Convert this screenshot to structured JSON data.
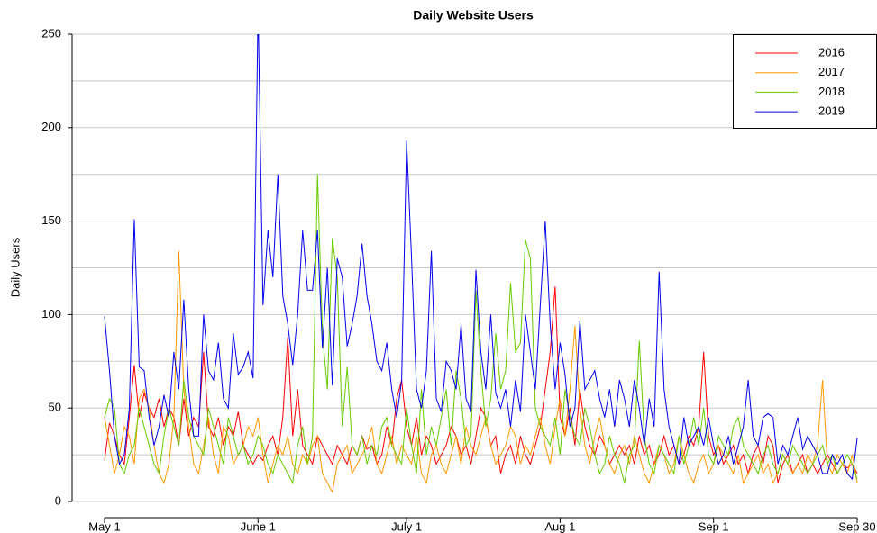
{
  "chart_data": {
    "type": "line",
    "title": "Daily Website Users",
    "ylabel": "Daily Users",
    "xlim": [
      0,
      152
    ],
    "xticks": [
      {
        "value": 0,
        "label": "May 1"
      },
      {
        "value": 31,
        "label": "June 1"
      },
      {
        "value": 61,
        "label": "July 1"
      },
      {
        "value": 92,
        "label": "Aug 1"
      },
      {
        "value": 123,
        "label": "Sep 1"
      },
      {
        "value": 152,
        "label": "Sep 30"
      }
    ],
    "ylim": [
      0,
      250
    ],
    "yticks": [
      0,
      50,
      100,
      150,
      200,
      250
    ],
    "ygrid": [
      0,
      25,
      50,
      75,
      100,
      125,
      150,
      175,
      200,
      225,
      250
    ],
    "grid": true,
    "legend": "top-right",
    "series": [
      {
        "name": "2016",
        "color": "#ff0000",
        "values": [
          22,
          42,
          35,
          25,
          20,
          45,
          73,
          45,
          58,
          50,
          45,
          55,
          40,
          50,
          45,
          30,
          55,
          35,
          45,
          40,
          80,
          40,
          35,
          45,
          30,
          40,
          35,
          48,
          30,
          25,
          20,
          25,
          22,
          30,
          35,
          25,
          45,
          88,
          35,
          60,
          30,
          25,
          20,
          35,
          30,
          25,
          20,
          30,
          25,
          20,
          30,
          25,
          35,
          28,
          30,
          20,
          25,
          40,
          30,
          55,
          65,
          40,
          30,
          45,
          25,
          35,
          30,
          20,
          25,
          30,
          40,
          35,
          25,
          30,
          20,
          35,
          50,
          45,
          30,
          35,
          15,
          25,
          30,
          20,
          35,
          25,
          20,
          30,
          40,
          60,
          80,
          115,
          45,
          35,
          50,
          30,
          60,
          40,
          30,
          25,
          35,
          30,
          20,
          25,
          30,
          25,
          30,
          20,
          35,
          25,
          30,
          20,
          25,
          35,
          25,
          30,
          20,
          25,
          35,
          30,
          40,
          80,
          35,
          25,
          30,
          20,
          25,
          30,
          20,
          25,
          15,
          25,
          30,
          20,
          35,
          30,
          10,
          20,
          25,
          15,
          20,
          25,
          15,
          20,
          15,
          20,
          25,
          20,
          15,
          20,
          18,
          20,
          15
        ]
      },
      {
        "name": "2017",
        "color": "#ff9900",
        "values": [
          45,
          30,
          15,
          25,
          40,
          35,
          20,
          55,
          60,
          50,
          30,
          15,
          10,
          20,
          45,
          134,
          60,
          40,
          20,
          15,
          30,
          45,
          25,
          15,
          40,
          35,
          20,
          25,
          30,
          40,
          35,
          45,
          25,
          10,
          20,
          30,
          25,
          35,
          20,
          15,
          25,
          20,
          30,
          35,
          15,
          10,
          5,
          20,
          25,
          30,
          15,
          20,
          25,
          30,
          40,
          20,
          15,
          25,
          35,
          20,
          30,
          25,
          20,
          35,
          15,
          10,
          25,
          30,
          20,
          15,
          25,
          35,
          20,
          40,
          30,
          25,
          35,
          45,
          30,
          20,
          25,
          30,
          40,
          35,
          20,
          30,
          25,
          35,
          45,
          30,
          20,
          40,
          55,
          35,
          60,
          94,
          50,
          30,
          20,
          35,
          45,
          30,
          20,
          15,
          25,
          30,
          20,
          35,
          25,
          15,
          10,
          20,
          30,
          25,
          15,
          20,
          35,
          25,
          15,
          10,
          20,
          25,
          15,
          20,
          30,
          25,
          20,
          15,
          25,
          10,
          15,
          20,
          25,
          15,
          20,
          10,
          15,
          25,
          20,
          15,
          20,
          15,
          25,
          20,
          30,
          65,
          20,
          15,
          25,
          20,
          15,
          25,
          10
        ]
      },
      {
        "name": "2018",
        "color": "#66cc00",
        "values": [
          45,
          55,
          50,
          20,
          15,
          25,
          30,
          50,
          40,
          30,
          20,
          15,
          35,
          50,
          40,
          30,
          65,
          45,
          35,
          30,
          25,
          50,
          40,
          30,
          20,
          45,
          35,
          25,
          30,
          20,
          25,
          35,
          30,
          20,
          15,
          25,
          20,
          15,
          10,
          30,
          40,
          20,
          35,
          175,
          90,
          60,
          141,
          120,
          40,
          72,
          30,
          25,
          35,
          20,
          30,
          25,
          40,
          45,
          30,
          25,
          20,
          50,
          30,
          15,
          60,
          25,
          40,
          30,
          45,
          60,
          30,
          70,
          55,
          30,
          35,
          113,
          70,
          40,
          55,
          90,
          60,
          70,
          117,
          80,
          85,
          140,
          130,
          50,
          40,
          35,
          30,
          45,
          25,
          60,
          45,
          35,
          30,
          50,
          40,
          25,
          15,
          20,
          35,
          25,
          20,
          10,
          25,
          30,
          86,
          35,
          20,
          15,
          30,
          25,
          20,
          15,
          35,
          20,
          30,
          45,
          30,
          50,
          25,
          20,
          35,
          30,
          25,
          40,
          45,
          30,
          25,
          20,
          15,
          25,
          30,
          20,
          15,
          25,
          20,
          30,
          25,
          20,
          15,
          20,
          25,
          30,
          20,
          25,
          15,
          20,
          25,
          20,
          12
        ]
      },
      {
        "name": "2019",
        "color": "#0000ee",
        "values": [
          99,
          70,
          35,
          20,
          25,
          50,
          151,
          72,
          70,
          45,
          30,
          40,
          57,
          45,
          80,
          60,
          108,
          60,
          35,
          35,
          100,
          70,
          65,
          85,
          55,
          50,
          90,
          68,
          72,
          80,
          66,
          265,
          105,
          145,
          120,
          175,
          110,
          95,
          73,
          100,
          145,
          113,
          113,
          145,
          82,
          125,
          62,
          130,
          120,
          83,
          95,
          110,
          138,
          110,
          95,
          75,
          70,
          85,
          60,
          45,
          65,
          193,
          130,
          60,
          50,
          70,
          134,
          55,
          48,
          75,
          70,
          60,
          95,
          55,
          48,
          124,
          80,
          60,
          100,
          58,
          50,
          60,
          40,
          65,
          48,
          100,
          80,
          60,
          105,
          150,
          95,
          60,
          85,
          68,
          40,
          50,
          97,
          60,
          65,
          70,
          55,
          45,
          60,
          40,
          65,
          55,
          40,
          65,
          50,
          30,
          55,
          40,
          123,
          60,
          40,
          30,
          20,
          45,
          30,
          35,
          40,
          30,
          45,
          30,
          20,
          25,
          35,
          20,
          30,
          40,
          65,
          35,
          30,
          45,
          47,
          45,
          20,
          30,
          25,
          35,
          45,
          28,
          35,
          30,
          25,
          15,
          15,
          25,
          20,
          25,
          15,
          12,
          34
        ]
      }
    ]
  }
}
